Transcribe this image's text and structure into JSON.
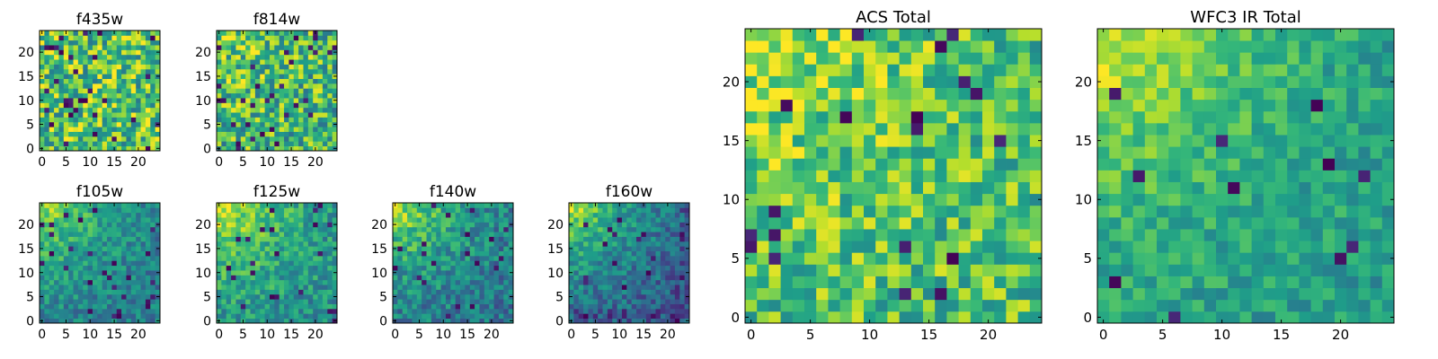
{
  "chart_data": [
    {
      "type": "heatmap",
      "title": "f435w",
      "size": 25,
      "xticks": [
        0,
        5,
        10,
        15,
        20
      ],
      "yticks": [
        0,
        5,
        10,
        15,
        20
      ],
      "xlim": [
        -0.5,
        24.5
      ],
      "ylim": [
        -0.5,
        24.5
      ],
      "colormap": "viridis",
      "pattern": "uniform noise, no gradient",
      "seed": 11,
      "gradient": 0.0,
      "base": 0.72,
      "noise": 0.32,
      "dark_frac": 0.05
    },
    {
      "type": "heatmap",
      "title": "f814w",
      "size": 25,
      "xticks": [
        0,
        5,
        10,
        15,
        20
      ],
      "yticks": [
        0,
        5,
        10,
        15,
        20
      ],
      "xlim": [
        -0.5,
        24.5
      ],
      "ylim": [
        -0.5,
        24.5
      ],
      "colormap": "viridis",
      "pattern": "noise, slightly brighter top-left",
      "seed": 23,
      "gradient": 0.12,
      "base": 0.66,
      "noise": 0.3,
      "dark_frac": 0.05
    },
    {
      "type": "heatmap",
      "title": "f105w",
      "size": 25,
      "xticks": [
        0,
        5,
        10,
        15,
        20
      ],
      "yticks": [
        0,
        5,
        10,
        15,
        20
      ],
      "xlim": [
        -0.5,
        24.5
      ],
      "ylim": [
        -0.5,
        24.5
      ],
      "colormap": "viridis",
      "pattern": "bright top-left corner, darker elsewhere",
      "seed": 37,
      "gradient": 0.45,
      "base": 0.42,
      "noise": 0.16,
      "dark_frac": 0.03
    },
    {
      "type": "heatmap",
      "title": "f125w",
      "size": 25,
      "xticks": [
        0,
        5,
        10,
        15,
        20
      ],
      "yticks": [
        0,
        5,
        10,
        15,
        20
      ],
      "xlim": [
        -0.5,
        24.5
      ],
      "ylim": [
        -0.5,
        24.5
      ],
      "colormap": "viridis",
      "pattern": "bright top-left corner, darker elsewhere",
      "seed": 41,
      "gradient": 0.45,
      "base": 0.5,
      "noise": 0.18,
      "dark_frac": 0.03
    },
    {
      "type": "heatmap",
      "title": "f140w",
      "size": 25,
      "xticks": [
        0,
        5,
        10,
        15,
        20
      ],
      "yticks": [
        0,
        5,
        10,
        15,
        20
      ],
      "xlim": [
        -0.5,
        24.5
      ],
      "ylim": [
        -0.5,
        24.5
      ],
      "colormap": "viridis",
      "pattern": "bright top-left corner, darker elsewhere",
      "seed": 53,
      "gradient": 0.48,
      "base": 0.4,
      "noise": 0.18,
      "dark_frac": 0.03
    },
    {
      "type": "heatmap",
      "title": "f160w",
      "size": 25,
      "xticks": [
        0,
        5,
        10,
        15,
        20
      ],
      "yticks": [
        0,
        5,
        10,
        15,
        20
      ],
      "xlim": [
        -0.5,
        24.5
      ],
      "ylim": [
        -0.5,
        24.5
      ],
      "colormap": "viridis",
      "pattern": "bright top-left corner, darkest bottom and right edges",
      "seed": 67,
      "gradient": 0.6,
      "base": 0.3,
      "noise": 0.16,
      "dark_frac": 0.04
    },
    {
      "type": "heatmap",
      "title": "ACS Total",
      "size": 25,
      "xticks": [
        0,
        5,
        10,
        15,
        20
      ],
      "yticks": [
        0,
        5,
        10,
        15,
        20
      ],
      "xlim": [
        -0.5,
        24.5
      ],
      "ylim": [
        -0.5,
        24.5
      ],
      "colormap": "viridis",
      "pattern": "mostly yellow-green noise, bright left edge",
      "seed": 79,
      "gradient": 0.18,
      "base": 0.7,
      "noise": 0.24,
      "dark_frac": 0.03
    },
    {
      "type": "heatmap",
      "title": "WFC3 IR Total",
      "size": 25,
      "xticks": [
        0,
        5,
        10,
        15,
        20
      ],
      "yticks": [
        0,
        5,
        10,
        15,
        20
      ],
      "xlim": [
        -0.5,
        24.5
      ],
      "ylim": [
        -0.5,
        24.5
      ],
      "colormap": "viridis",
      "pattern": "bright top-left corner, green-teal elsewhere",
      "seed": 97,
      "gradient": 0.4,
      "base": 0.55,
      "noise": 0.14,
      "dark_frac": 0.02
    }
  ]
}
